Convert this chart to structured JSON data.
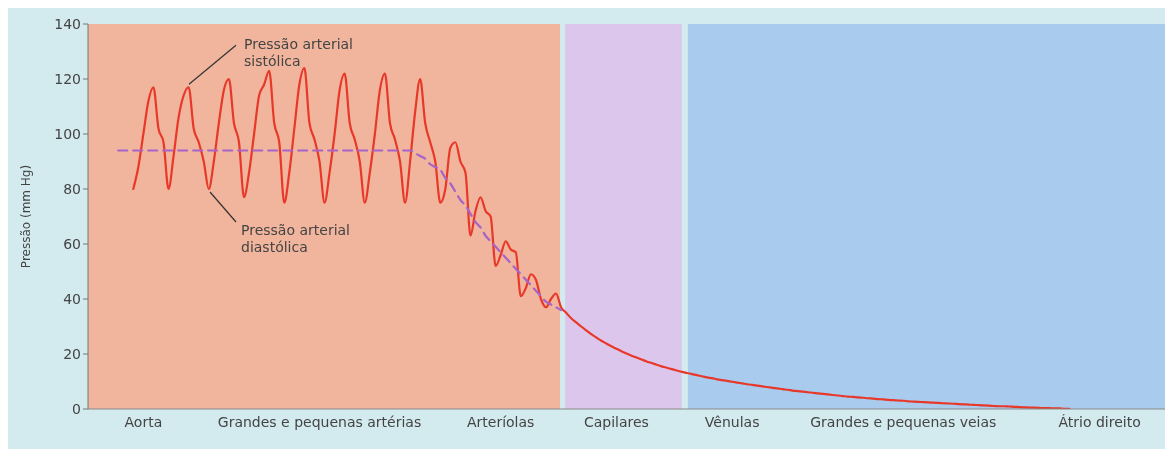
{
  "chart_data": {
    "type": "line",
    "ylabel": "Pressão (mm Hg)",
    "categories": [
      null,
      null,
      null,
      null,
      null,
      null,
      null,
      null,
      null,
      null,
      null,
      "Aorta",
      null,
      null,
      null,
      null,
      null,
      null,
      null,
      null,
      null,
      null,
      null,
      null,
      null,
      null,
      null,
      null,
      null,
      null,
      null,
      null,
      null,
      null,
      null,
      null,
      null,
      null,
      null,
      null,
      null,
      null,
      null,
      null,
      null,
      null,
      "Grandes e pequenas artérias",
      null,
      null,
      null,
      null,
      null,
      null,
      null,
      null,
      null,
      null,
      null,
      null,
      null,
      null,
      null,
      null,
      null,
      null,
      null,
      null,
      null,
      null,
      null,
      null,
      null,
      null,
      null,
      null,
      null,
      null,
      null,
      null,
      null,
      null,
      null,
      "Arteríolas",
      null,
      null,
      null,
      null,
      null,
      null,
      null,
      null,
      null,
      null,
      null,
      null,
      null,
      null,
      null,
      null,
      null,
      null,
      null,
      null,
      null,
      null,
      "Capilares",
      null,
      null,
      null,
      null,
      null,
      null,
      null,
      null,
      null,
      null,
      null,
      null,
      null,
      null,
      null,
      null,
      null,
      null,
      null,
      null,
      null,
      null,
      "Vênulas",
      null,
      null,
      null,
      null,
      null,
      null,
      null,
      null,
      null,
      null,
      null,
      null,
      null,
      null,
      null,
      null,
      null,
      null,
      null,
      null,
      null,
      null,
      null,
      null,
      null,
      null,
      null,
      null,
      null,
      null,
      null,
      null,
      null,
      "Grandes e pequenas veias",
      null,
      null,
      null,
      null,
      null,
      null,
      null,
      null,
      null,
      null,
      null,
      null,
      null,
      null,
      null,
      null,
      null,
      null,
      null,
      null,
      null,
      null,
      null,
      null,
      null,
      null,
      null,
      null,
      null,
      null,
      null,
      null,
      null,
      null,
      null,
      null,
      null,
      null,
      "Átrio direito",
      null,
      null,
      null,
      null,
      null,
      null,
      null,
      null,
      null,
      null,
      null,
      null,
      null
    ],
    "ylim": [
      0,
      140
    ],
    "yticks": [
      0,
      20,
      40,
      60,
      80,
      100,
      120,
      140
    ],
    "series": [
      {
        "color": "#e8382a",
        "line_style": "solid",
        "values": [
          null,
          null,
          null,
          null,
          null,
          null,
          null,
          null,
          null,
          80,
          88,
          100,
          112,
          117,
          102,
          97,
          80,
          92,
          106,
          114,
          117,
          102,
          97,
          90,
          80,
          90,
          104,
          116,
          120,
          104,
          97,
          77,
          86,
          100,
          114,
          118,
          123,
          104,
          97,
          75,
          86,
          102,
          118,
          124,
          104,
          98,
          90,
          75,
          86,
          100,
          116,
          122,
          104,
          98,
          90,
          75,
          86,
          100,
          116,
          122,
          104,
          98,
          90,
          75,
          90,
          108,
          120,
          104,
          97,
          90,
          75,
          80,
          95,
          97,
          90,
          86,
          63,
          72,
          77,
          72,
          70,
          52,
          56,
          61,
          58,
          57,
          41,
          44,
          49,
          47,
          40,
          37,
          40,
          42,
          37,
          35,
          33,
          31.5,
          30,
          28.6,
          27.2,
          26,
          24.8,
          23.8,
          22.8,
          21.9,
          21,
          20.2,
          19.4,
          18.7,
          18,
          17.3,
          16.7,
          16.1,
          15.5,
          15,
          14.5,
          14,
          13.5,
          13.1,
          12.7,
          12.3,
          11.9,
          11.5,
          11.2,
          10.8,
          10.5,
          10.2,
          9.9,
          9.6,
          9.3,
          9,
          8.8,
          8.5,
          8.2,
          8,
          7.7,
          7.5,
          7.2,
          7,
          6.7,
          6.5,
          6.3,
          6.1,
          5.9,
          5.7,
          5.5,
          5.3,
          5.1,
          4.9,
          4.7,
          4.5,
          4.4,
          4.2,
          4.1,
          3.9,
          3.8,
          3.6,
          3.5,
          3.3,
          3.2,
          3.1,
          3,
          2.8,
          2.7,
          2.6,
          2.5,
          2.4,
          2.3,
          2.2,
          2.1,
          2,
          1.9,
          1.8,
          1.7,
          1.6,
          1.5,
          1.4,
          1.3,
          1.2,
          1.1,
          1,
          1,
          0.9,
          0.8,
          0.7,
          0.6,
          0.5,
          0.5,
          0.4,
          0.3,
          0.3,
          0.2,
          0.2,
          0.1,
          0.1,
          null,
          null,
          null,
          null,
          null,
          null,
          null,
          null,
          null,
          null,
          null,
          null,
          null,
          null,
          null,
          null,
          null,
          null,
          null
        ]
      },
      {
        "color": "#a763c9",
        "line_style": "dashed",
        "values": [
          null,
          null,
          null,
          null,
          null,
          null,
          94,
          94,
          94,
          94,
          94,
          94,
          94,
          94,
          94,
          94,
          94,
          94,
          94,
          94,
          94,
          94,
          94,
          94,
          94,
          94,
          94,
          94,
          94,
          94,
          94,
          94,
          94,
          94,
          94,
          94,
          94,
          94,
          94,
          94,
          94,
          94,
          94,
          94,
          94,
          94,
          94,
          94,
          94,
          94,
          94,
          94,
          94,
          94,
          94,
          94,
          94,
          94,
          94,
          94,
          94,
          94,
          94,
          94,
          94,
          93,
          92,
          91,
          89,
          88,
          87,
          84,
          82,
          79,
          76,
          74,
          71,
          68,
          66,
          63,
          61,
          59,
          57,
          55,
          53,
          51,
          49,
          47,
          45,
          43,
          41,
          39,
          38,
          37,
          36,
          null,
          null,
          null,
          null,
          null,
          null,
          null,
          null,
          null,
          null,
          null,
          null,
          null,
          null,
          null,
          null,
          null,
          null,
          null,
          null,
          null,
          null,
          null,
          null,
          null,
          null,
          null,
          null,
          null,
          null,
          null,
          null,
          null,
          null,
          null,
          null,
          null,
          null,
          null,
          null,
          null,
          null,
          null,
          null,
          null,
          null,
          null,
          null,
          null,
          null,
          null,
          null,
          null,
          null,
          null,
          null,
          null,
          null,
          null,
          null,
          null,
          null,
          null,
          null,
          null,
          null,
          null,
          null,
          null,
          null,
          null,
          null,
          null,
          null,
          null,
          null,
          null,
          null,
          null,
          null,
          null,
          null,
          null,
          null,
          null,
          null,
          null,
          null,
          null,
          null,
          null,
          null,
          null,
          null,
          null,
          null,
          null,
          null,
          null,
          null,
          null,
          null,
          null,
          null,
          null,
          null,
          null,
          null,
          null,
          null,
          null,
          null,
          null,
          null,
          null,
          null,
          null,
          null,
          null,
          null
        ]
      }
    ],
    "annotations": [
      {
        "text": "Pressão arterial sistólica",
        "y": 117
      },
      "Pressão arterial diastólica"
    ]
  }
}
